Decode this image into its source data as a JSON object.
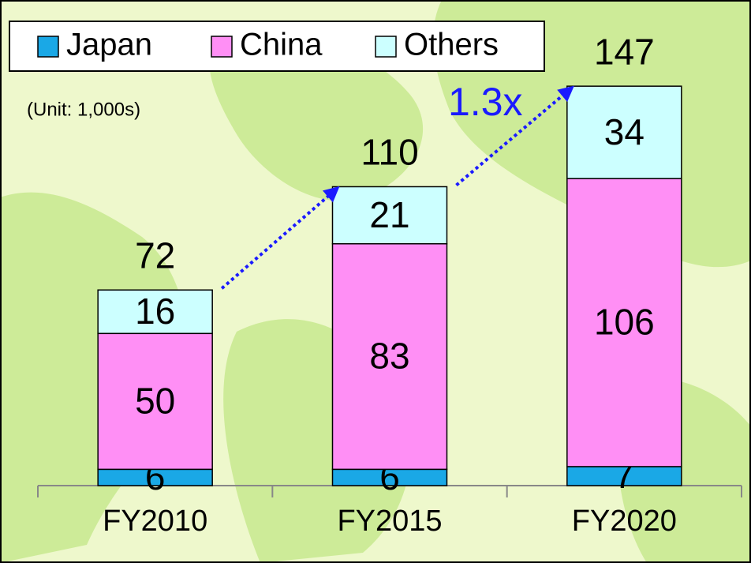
{
  "chart_data": {
    "type": "stacked_bar",
    "categories": [
      "FY2010",
      "FY2015",
      "FY2020"
    ],
    "series": [
      {
        "name": "Japan",
        "color": "#1aa8e6",
        "values": [
          6,
          6,
          7
        ]
      },
      {
        "name": "China",
        "color": "#ff8ff5",
        "values": [
          50,
          83,
          106
        ]
      },
      {
        "name": "Others",
        "color": "#ccffff",
        "values": [
          16,
          21,
          34
        ]
      }
    ],
    "totals": [
      72,
      110,
      147
    ],
    "annotations": {
      "unit": "(Unit: 1,000s)",
      "growth": "1.3x"
    },
    "ylim": [
      0,
      170
    ],
    "legend": "top-left",
    "arrow_color": "#1a1aff"
  }
}
